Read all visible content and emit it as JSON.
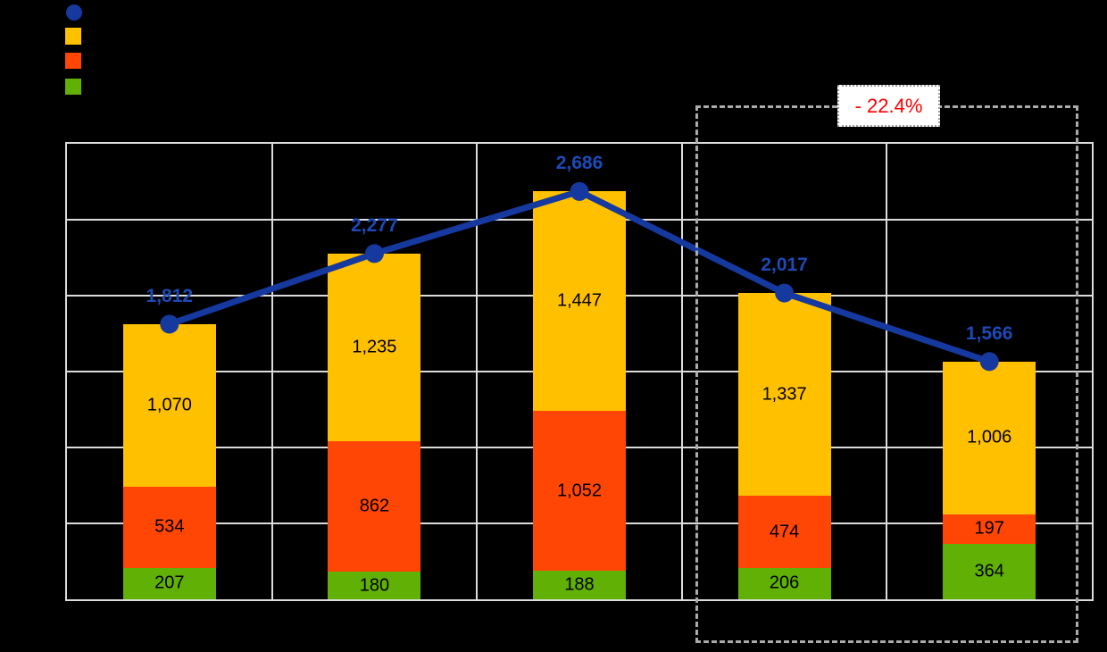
{
  "background_color": "#000000",
  "legend": {
    "position": "top-left",
    "items": [
      {
        "name": "total-line",
        "marker": "circle",
        "color": "#16399F"
      },
      {
        "name": "amber-series",
        "marker": "square",
        "color": "#FFC000"
      },
      {
        "name": "red-series",
        "marker": "square",
        "color": "#FF4605"
      },
      {
        "name": "green-series",
        "marker": "square",
        "color": "#60B005"
      }
    ]
  },
  "annotation": {
    "label": "- 22.4%",
    "text_color": "#FF0000",
    "box_fill": "#FFFFFF",
    "box_border_color": "#9C9C9C",
    "region_border_color": "#ABABAB"
  },
  "chart_data": {
    "type": "bar",
    "subtype": "stacked-column-with-total-line",
    "categories": [
      "",
      "",
      "",
      "",
      ""
    ],
    "series": [
      {
        "name": "amber (top segment)",
        "color": "#FFC000",
        "values": [
          1070,
          1235,
          1447,
          1337,
          1006
        ]
      },
      {
        "name": "red-orange (middle segment)",
        "color": "#FF4605",
        "values": [
          534,
          862,
          1052,
          474,
          197
        ]
      },
      {
        "name": "green (bottom segment)",
        "color": "#60B005",
        "values": [
          207,
          180,
          188,
          206,
          364
        ]
      }
    ],
    "line_series": {
      "name": "total",
      "color": "#16399F",
      "label_color": "#1E49B8",
      "values": [
        1812,
        2277,
        2686,
        2017,
        1566
      ]
    },
    "ylim": [
      0,
      3000
    ],
    "grid_step": 500,
    "grid": true,
    "gridline_color": "#DCDCDC",
    "plot_border_color": "#DCDCDC",
    "segment_label_color": "#000000",
    "legend_position": "top-left",
    "highlighted_category_indices": [
      3,
      4
    ]
  }
}
